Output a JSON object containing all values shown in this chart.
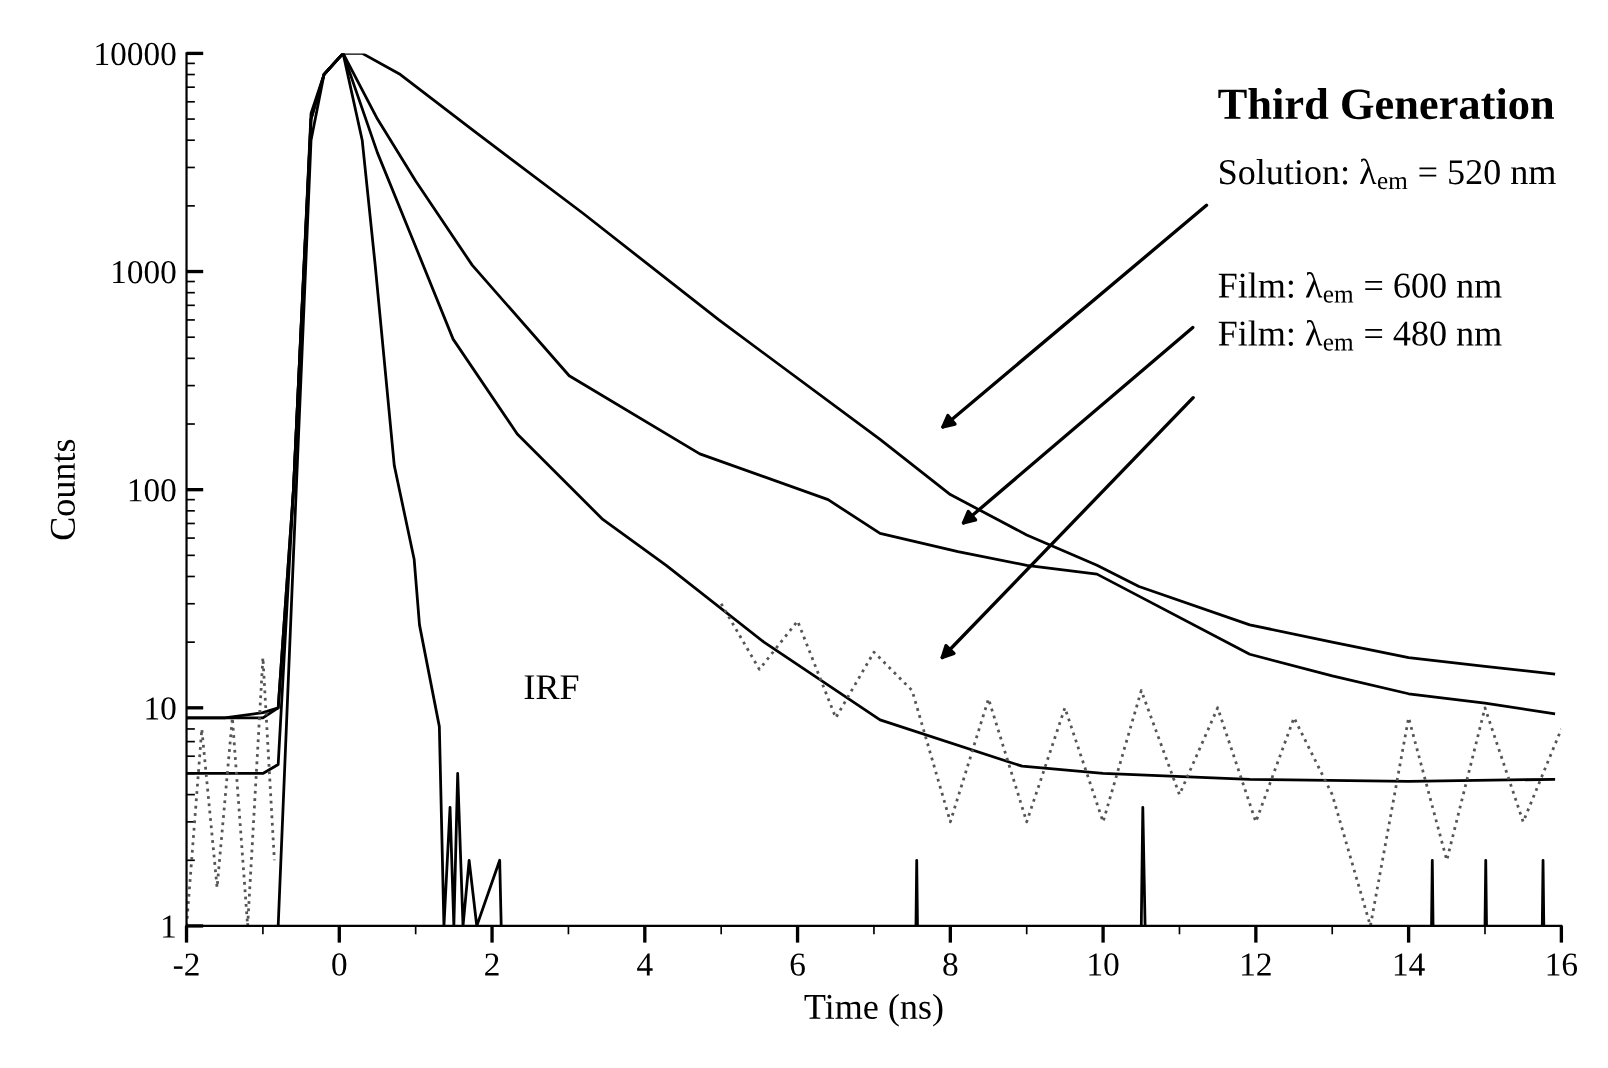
{
  "chart_data": {
    "type": "line",
    "title": "Third Generation",
    "xlabel": "Time (ns)",
    "ylabel": "Counts",
    "log": "y",
    "xlim": [
      -2,
      16
    ],
    "xticks": [
      -2,
      0,
      2,
      4,
      6,
      8,
      10,
      12,
      14,
      16
    ],
    "ylim": [
      1,
      10000
    ],
    "yticks": [
      1,
      10,
      100,
      1000,
      10000
    ],
    "grid": false,
    "marker": "none",
    "series": [
      {
        "color": "#000000",
        "line_style": "solid",
        "x": [
          -2,
          -1.5,
          -1,
          -0.8,
          -0.6,
          -0.37,
          -0.2,
          0.05,
          0.3,
          0.8,
          1.74,
          3.19,
          4.97,
          7.08,
          8.0,
          9.0,
          9.92,
          10.47,
          11.92,
          13.0,
          14.0,
          15.0,
          15.9
        ],
        "values": [
          9,
          9,
          9,
          10,
          100,
          5300,
          8000,
          10000,
          10000,
          8000,
          4470,
          1850,
          600,
          170,
          95,
          62,
          45,
          36,
          24,
          20,
          17,
          15.5,
          14.3
        ]
      },
      {
        "color": "#000000",
        "line_style": "solid",
        "x": [
          -2,
          -1.5,
          -1,
          -0.8,
          -0.6,
          -0.37,
          -0.2,
          0.05,
          0.5,
          1.0,
          1.74,
          3.01,
          4.72,
          6.4,
          7.08,
          8.1,
          9.0,
          9.92,
          11.92,
          13.0,
          14.0,
          15.0,
          15.9
        ],
        "values": [
          9,
          9,
          9.5,
          10,
          100,
          5000,
          8000,
          10000,
          5000,
          2600,
          1070,
          333,
          146,
          90,
          63,
          52,
          45,
          41,
          17.6,
          14,
          11.6,
          10.5,
          9.4
        ]
      },
      {
        "color": "#000000",
        "line_style": "solid",
        "x": [
          -2,
          -1.5,
          -1,
          -0.8,
          -0.6,
          -0.37,
          -0.2,
          0.05,
          0.5,
          1.0,
          1.49,
          2.33,
          3.45,
          4.28,
          5.56,
          7.08,
          8.94,
          10.0,
          11.92,
          14.0,
          15.9
        ],
        "values": [
          5,
          5,
          5,
          5.5,
          100,
          5000,
          8000,
          10000,
          3500,
          1300,
          490,
          180,
          73,
          45,
          20,
          8.8,
          5.4,
          5,
          4.7,
          4.6,
          4.7
        ]
      },
      {
        "color": "#000000",
        "line_style": "solid",
        "x": [
          -0.8,
          -0.6,
          -0.37,
          -0.2,
          0.05,
          0.3,
          0.47,
          0.72,
          0.98,
          1.05,
          1.31,
          1.37,
          1.45,
          1.5,
          1.55,
          1.62,
          1.7,
          1.8,
          2.1,
          2.12,
          2.14,
          7.55,
          7.56,
          7.57,
          7.58,
          10.5,
          10.52,
          10.55,
          10.57,
          14.3,
          14.31,
          14.32,
          14.33,
          15.0,
          15.01,
          15.02,
          15.03,
          15.75,
          15.76,
          15.77
        ],
        "values": [
          1,
          50,
          4000,
          8000,
          10000,
          4000,
          1070,
          129,
          48,
          24,
          8.2,
          1,
          3.5,
          1,
          5,
          1,
          2,
          1,
          2,
          1,
          null,
          1,
          2,
          1,
          null,
          1,
          3.5,
          1,
          null,
          1,
          2,
          1,
          null,
          1,
          2,
          1,
          null,
          1,
          2,
          1
        ]
      },
      {
        "color": "#555555",
        "line_style": "dotted",
        "x": [
          -2,
          -1.8,
          -1.6,
          -1.4,
          -1.2,
          -1.0,
          -0.85,
          0,
          5.0,
          5.5,
          6.0,
          6.5,
          7.0,
          7.5,
          8.0,
          8.5,
          9.0,
          9.5,
          10.0,
          10.5,
          11.0,
          11.5,
          12.0,
          12.5,
          13.0,
          13.5,
          14.0,
          14.5,
          15.0,
          15.5,
          16.0
        ],
        "values": [
          1,
          8,
          1.5,
          9,
          1,
          17,
          2,
          null,
          30,
          15,
          25,
          9,
          18,
          12,
          3,
          11,
          3,
          10,
          3,
          12,
          4,
          10,
          3,
          9,
          4,
          1,
          9,
          2,
          10,
          3,
          8
        ]
      }
    ],
    "annotations": [
      "Solution: λ$_{em}$ = 520 nm",
      "Film: λ$_{em}$ = 600 nm",
      "Film: λ$_{em}$ = 480 nm",
      "IRF"
    ]
  }
}
